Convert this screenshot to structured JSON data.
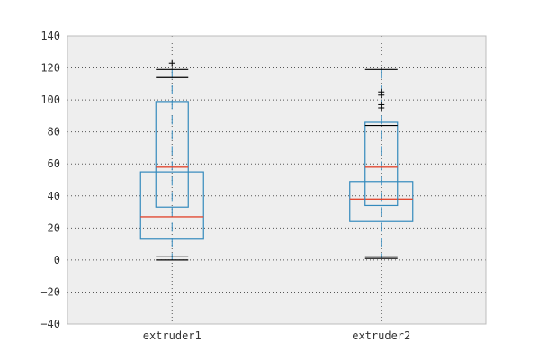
{
  "chart_data": {
    "type": "box",
    "title": "",
    "xlabel": "",
    "ylabel": "",
    "ylim": [
      -40,
      140
    ],
    "yticks": [
      -40,
      -20,
      0,
      20,
      40,
      60,
      80,
      100,
      120,
      140
    ],
    "grid": true,
    "colors": {
      "background": "#eeeeee",
      "frame": "#bcbcbc",
      "box": "#348abd",
      "median": "#e24a33",
      "cap": "#000000",
      "grid": "#555555"
    },
    "categories": [
      "extruder1",
      "extruder2"
    ],
    "boxes": [
      {
        "category": "extruder1",
        "overlay": {
          "q1": 33,
          "median": 58,
          "q3": 99
        },
        "main": {
          "q1": 13,
          "median": 27,
          "q3": 55
        },
        "whisker_low": 0,
        "whisker_high": 119,
        "caps": [
          0,
          2,
          114,
          119
        ],
        "fliers": [
          123
        ]
      },
      {
        "category": "extruder2",
        "overlay": {
          "q1": 34,
          "median": 58,
          "q3": 86
        },
        "main": {
          "q1": 24,
          "median": 38,
          "q3": 49
        },
        "whisker_low": 1,
        "whisker_high": 119,
        "caps": [
          1,
          2,
          84,
          119
        ],
        "fliers": [
          95,
          97,
          103,
          105
        ]
      }
    ]
  }
}
